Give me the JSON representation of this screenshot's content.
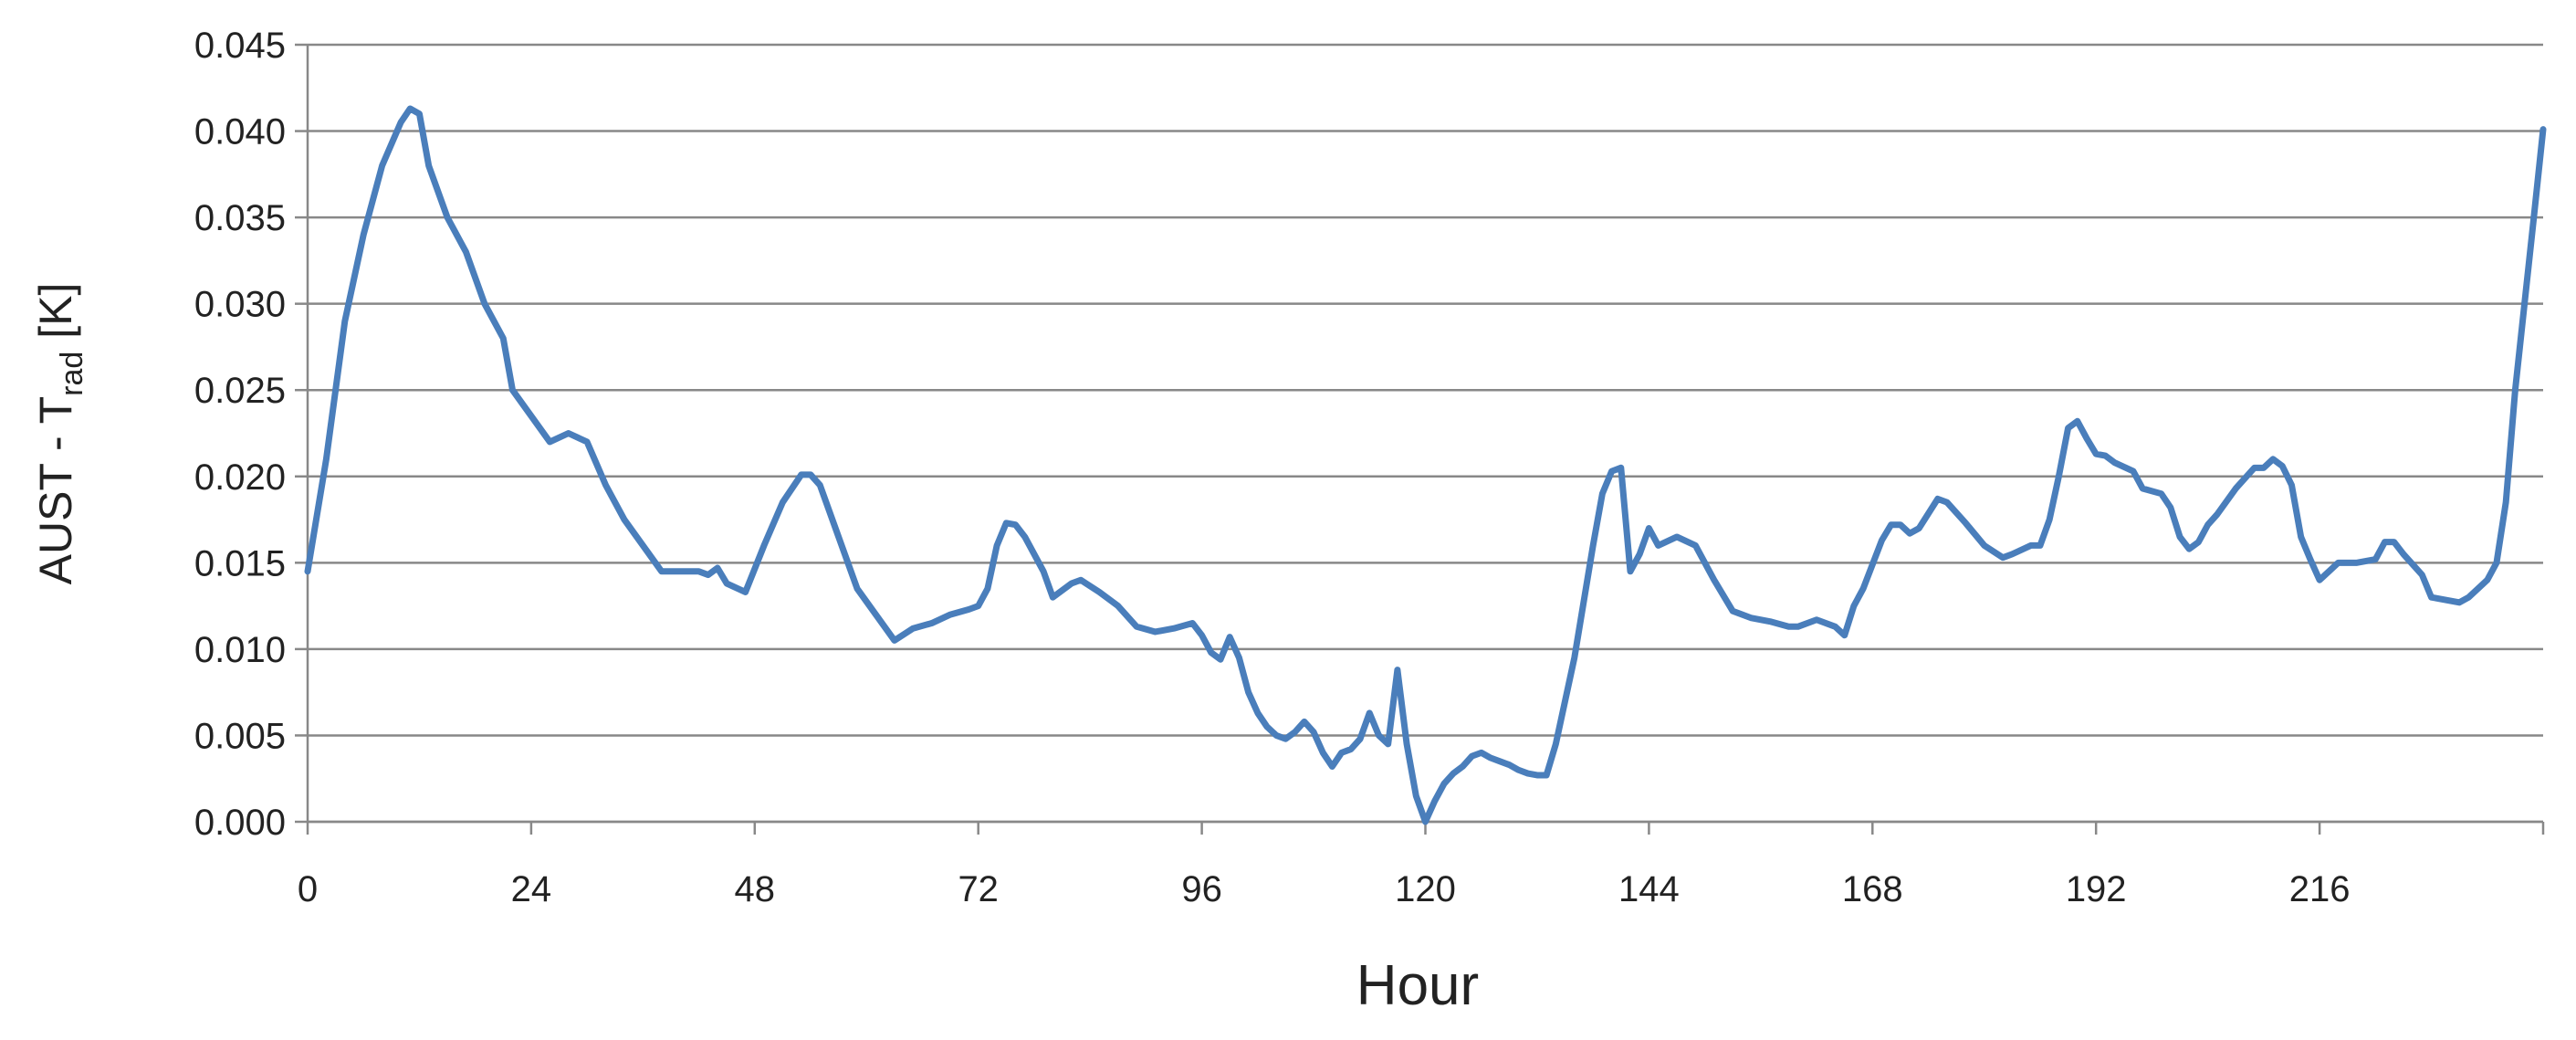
{
  "chart_data": {
    "type": "line",
    "x_label": "Hour",
    "y_label_parts": [
      "AUST - T",
      "rad",
      " [K]"
    ],
    "color": "#4a7ebb",
    "grid": true,
    "xlim": [
      0,
      240
    ],
    "xticks": [
      0,
      24,
      48,
      72,
      96,
      120,
      144,
      168,
      192,
      216
    ],
    "ylim": [
      0,
      0.045
    ],
    "yticks": [
      {
        "value": 0,
        "label": "0.000"
      },
      {
        "value": 0.005,
        "label": "0.005"
      },
      {
        "value": 0.01,
        "label": "0.010"
      },
      {
        "value": 0.015,
        "label": "0.015"
      },
      {
        "value": 0.02,
        "label": "0.020"
      },
      {
        "value": 0.025,
        "label": "0.025"
      },
      {
        "value": 0.03,
        "label": "0.030"
      },
      {
        "value": 0.035,
        "label": "0.035"
      },
      {
        "value": 0.04,
        "label": "0.040"
      },
      {
        "value": 0.045,
        "label": "0.045"
      }
    ],
    "x": [
      0,
      2,
      4,
      6,
      8,
      10,
      11,
      12,
      13,
      15,
      17,
      19,
      21,
      22,
      24,
      26,
      28,
      30,
      32,
      34,
      36,
      38,
      40,
      42,
      43,
      44,
      45,
      47,
      49,
      51,
      53,
      54,
      55,
      57,
      59,
      61,
      63,
      65,
      67,
      69,
      71,
      72,
      73,
      74,
      75,
      76,
      77,
      79,
      80,
      82,
      83,
      85,
      87,
      89,
      91,
      93,
      95,
      96,
      97,
      98,
      99,
      100,
      101,
      102,
      103,
      104,
      105,
      106,
      107,
      108,
      109,
      110,
      111,
      112,
      113,
      114,
      115,
      116,
      117,
      118,
      119,
      120,
      121,
      122,
      123,
      124,
      125,
      126,
      127,
      128,
      129,
      130,
      131,
      132,
      133,
      134,
      136,
      138,
      139,
      140,
      141,
      142,
      143,
      144,
      145,
      147,
      149,
      151,
      153,
      155,
      157,
      159,
      160,
      162,
      164,
      165,
      166,
      167,
      169,
      170,
      171,
      172,
      173,
      175,
      176,
      178,
      180,
      182,
      183,
      185,
      186,
      187,
      188,
      189,
      190,
      191,
      192,
      193,
      194,
      196,
      197,
      199,
      200,
      201,
      202,
      203,
      204,
      205,
      207,
      209,
      210,
      211,
      212,
      213,
      214,
      215,
      216,
      217,
      218,
      220,
      222,
      223,
      224,
      225,
      227,
      228,
      230,
      231,
      232,
      234,
      235,
      236,
      237,
      238,
      239,
      240
    ],
    "values": [
      0.0145,
      0.021,
      0.029,
      0.034,
      0.038,
      0.0405,
      0.0413,
      0.041,
      0.038,
      0.035,
      0.033,
      0.03,
      0.028,
      0.025,
      0.0235,
      0.022,
      0.0225,
      0.022,
      0.0195,
      0.0175,
      0.016,
      0.0145,
      0.0145,
      0.0145,
      0.0143,
      0.0147,
      0.0138,
      0.0133,
      0.016,
      0.0185,
      0.0201,
      0.0201,
      0.0195,
      0.0165,
      0.0135,
      0.012,
      0.0105,
      0.0112,
      0.0115,
      0.012,
      0.0123,
      0.0125,
      0.0135,
      0.016,
      0.0173,
      0.0172,
      0.0165,
      0.0145,
      0.013,
      0.0138,
      0.014,
      0.0133,
      0.0125,
      0.0113,
      0.011,
      0.0112,
      0.0115,
      0.0108,
      0.0098,
      0.0094,
      0.0107,
      0.0095,
      0.0075,
      0.0063,
      0.0055,
      0.005,
      0.0048,
      0.0052,
      0.0058,
      0.0052,
      0.004,
      0.0032,
      0.004,
      0.0042,
      0.0048,
      0.0063,
      0.005,
      0.0045,
      0.0088,
      0.0045,
      0.0015,
      0.0,
      0.0012,
      0.0022,
      0.0028,
      0.0032,
      0.0038,
      0.004,
      0.0037,
      0.0035,
      0.0033,
      0.003,
      0.0028,
      0.0027,
      0.0027,
      0.0045,
      0.0095,
      0.016,
      0.019,
      0.0203,
      0.0205,
      0.0145,
      0.0155,
      0.017,
      0.016,
      0.0165,
      0.016,
      0.014,
      0.0122,
      0.0118,
      0.0116,
      0.0113,
      0.0113,
      0.0117,
      0.0113,
      0.0108,
      0.0125,
      0.0135,
      0.0163,
      0.0172,
      0.0172,
      0.0167,
      0.017,
      0.0187,
      0.0185,
      0.0173,
      0.016,
      0.0153,
      0.0155,
      0.016,
      0.016,
      0.0175,
      0.02,
      0.0228,
      0.0232,
      0.0222,
      0.0213,
      0.0212,
      0.0208,
      0.0203,
      0.0193,
      0.019,
      0.0182,
      0.0165,
      0.0158,
      0.0162,
      0.0172,
      0.0178,
      0.0193,
      0.0205,
      0.0205,
      0.021,
      0.0206,
      0.0195,
      0.0165,
      0.0152,
      0.014,
      0.0145,
      0.015,
      0.015,
      0.0152,
      0.0162,
      0.0162,
      0.0155,
      0.0143,
      0.013,
      0.0128,
      0.0127,
      0.013,
      0.014,
      0.015,
      0.0185,
      0.025,
      0.03,
      0.035,
      0.0401
    ]
  }
}
